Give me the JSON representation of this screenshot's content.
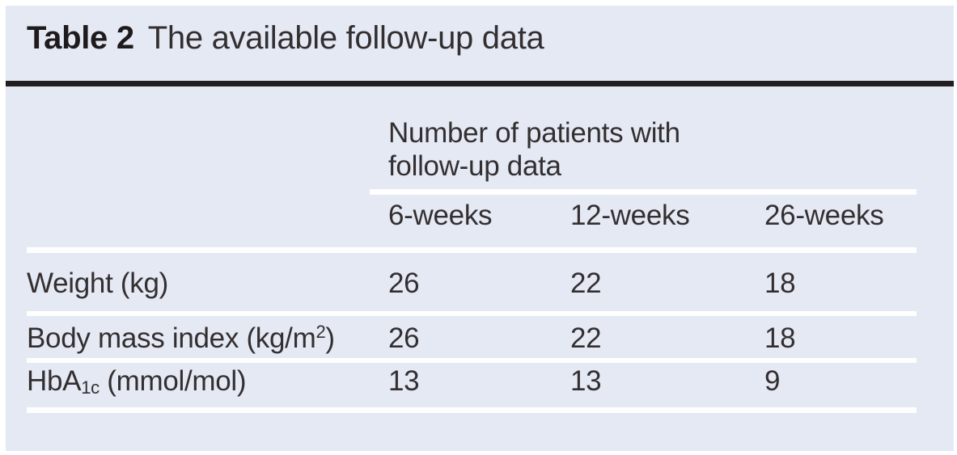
{
  "title": {
    "label": "Table 2",
    "text": "The available follow-up data"
  },
  "table": {
    "group_header_lines": [
      "Number of patients with",
      "follow-up data"
    ],
    "columns": [
      "6-weeks",
      "12-weeks",
      "26-weeks"
    ],
    "rows": [
      {
        "label_pre": "Weight (kg)",
        "label_sup": "",
        "label_sub": "",
        "label_post": "",
        "values": [
          "26",
          "22",
          "18"
        ]
      },
      {
        "label_pre": "Body mass index (kg/m",
        "label_sup": "2",
        "label_sub": "",
        "label_post": ")",
        "values": [
          "26",
          "22",
          "18"
        ]
      },
      {
        "label_pre": "HbA",
        "label_sup": "",
        "label_sub": "1c",
        "label_post": " (mmol/mol)",
        "values": [
          "13",
          "13",
          "9"
        ]
      }
    ]
  },
  "colors": {
    "panel_bg": "#e4e9f4",
    "rule_dark": "#231f20",
    "text": "#332f31",
    "title_label": "#1f1b1c",
    "row_rule": "#ffffff"
  }
}
